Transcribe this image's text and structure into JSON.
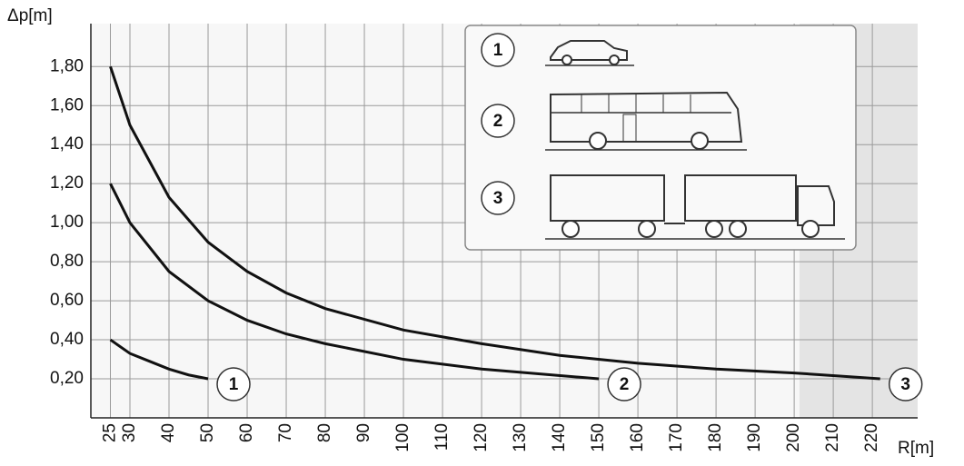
{
  "chart_data": {
    "type": "line",
    "y_label": "Δp[m]",
    "x_label": "R[m]",
    "xlim": [
      20,
      231.6
    ],
    "ylim": [
      0,
      2.02
    ],
    "xticks": [
      25,
      30,
      40,
      50,
      60,
      70,
      80,
      90,
      100,
      110,
      120,
      130,
      140,
      150,
      160,
      170,
      180,
      190,
      200,
      210,
      220
    ],
    "yticks": [
      {
        "value": 0.2,
        "label": "0,20"
      },
      {
        "value": 0.4,
        "label": "0,40"
      },
      {
        "value": 0.6,
        "label": "0,60"
      },
      {
        "value": 0.8,
        "label": "0,80"
      },
      {
        "value": 1.0,
        "label": "1,00"
      },
      {
        "value": 1.2,
        "label": "1,20"
      },
      {
        "value": 1.4,
        "label": "1,40"
      },
      {
        "value": 1.6,
        "label": "1,60"
      },
      {
        "value": 1.8,
        "label": "1,80"
      }
    ],
    "grid": true,
    "series": [
      {
        "name": "1",
        "color": "#111111",
        "x": [
          25,
          30,
          35,
          40,
          45,
          50
        ],
        "values": [
          0.4,
          0.33,
          0.29,
          0.25,
          0.22,
          0.2
        ]
      },
      {
        "name": "2",
        "color": "#111111",
        "x": [
          25,
          30,
          40,
          50,
          60,
          70,
          80,
          100,
          120,
          150
        ],
        "values": [
          1.2,
          1.0,
          0.75,
          0.6,
          0.5,
          0.43,
          0.38,
          0.3,
          0.25,
          0.2
        ]
      },
      {
        "name": "3",
        "color": "#111111",
        "x": [
          25,
          30,
          40,
          50,
          60,
          70,
          80,
          100,
          120,
          140,
          160,
          180,
          200,
          222
        ],
        "values": [
          1.8,
          1.5,
          1.13,
          0.9,
          0.75,
          0.64,
          0.56,
          0.45,
          0.38,
          0.32,
          0.28,
          0.25,
          0.23,
          0.2
        ]
      }
    ]
  }
}
